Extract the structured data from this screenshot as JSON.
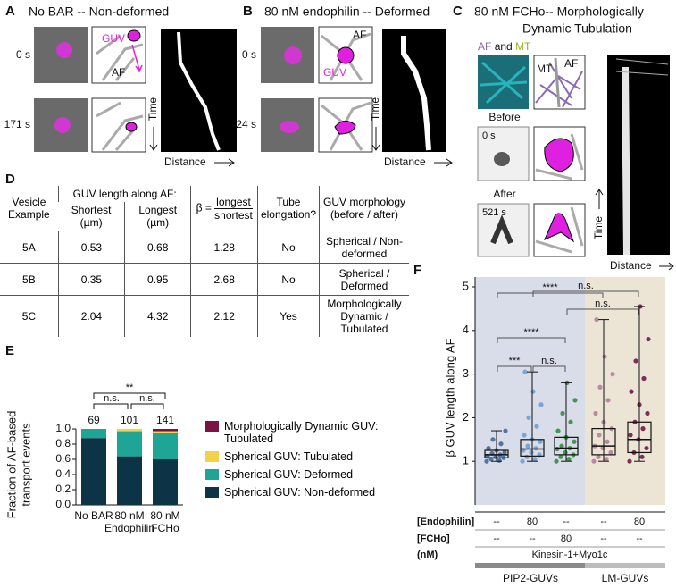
{
  "panels": {
    "A": {
      "label": "A",
      "title": "No BAR -- Non-deformed",
      "times": [
        "0 s",
        "171 s"
      ],
      "guv": "GUV",
      "af": "AF",
      "time_axis": "Time",
      "distance_axis": "Distance"
    },
    "B": {
      "label": "B",
      "title": "80 nM endophilin -- Deformed",
      "times": [
        "0 s",
        "24 s"
      ],
      "af": "AF",
      "guv": "GUV",
      "time_axis": "Time",
      "distance_axis": "Distance"
    },
    "C": {
      "label": "C",
      "title": [
        "80 nM FCHo-- Morphologically",
        "Dynamic Tubulation"
      ],
      "channels": {
        "af": "AF",
        "and": "and",
        "mt": "MT"
      },
      "mt": "MT",
      "af": "AF",
      "before": "Before",
      "after": "After",
      "times": [
        "0 s",
        "521 s"
      ],
      "time_axis": "Time",
      "distance_axis": "Distance"
    },
    "D": {
      "label": "D"
    },
    "E": {
      "label": "E"
    },
    "F": {
      "label": "F"
    }
  },
  "table": {
    "header": {
      "vesicle": "Vesicle Example",
      "length": "GUV length along AF:",
      "shortest": "Shortest (µm)",
      "longest": "Longest (µm)",
      "beta": "β =",
      "numerator": "longest",
      "denominator": "shortest",
      "tube": "Tube elongation?",
      "morphology": "GUV morphology (before / after)"
    },
    "rows": [
      [
        "5A",
        0.53,
        0.68,
        1.28,
        "No",
        "Spherical / Non-deformed"
      ],
      [
        "5B",
        0.35,
        0.95,
        2.68,
        "No",
        "Spherical / Deformed"
      ],
      [
        "5C",
        2.04,
        4.32,
        2.12,
        "Yes",
        "Morphologically Dynamic / Tubulated"
      ]
    ]
  },
  "chart_data": [
    {
      "type": "stacked_bar",
      "ylabel": [
        "Fraction of AF-based",
        "transport events"
      ],
      "categories": [
        [
          "No BAR"
        ],
        [
          "80 nM",
          "Endophilin"
        ],
        [
          "80 nM",
          "FCHo"
        ]
      ],
      "n": [
        69,
        101,
        141
      ],
      "significance": [
        "n.s.",
        "**",
        "n.s."
      ],
      "ylim": [
        0,
        1
      ],
      "yticks": [
        {
          "value": 0,
          "label": "0.0"
        },
        0.2,
        0.4,
        0.6,
        0.8,
        {
          "value": 1,
          "label": "1.0"
        }
      ],
      "series": [
        {
          "name": "Spherical GUV: Non-deformed",
          "color": "#0c3346",
          "values": [
            0.88,
            0.64,
            0.6
          ]
        },
        {
          "name": "Spherical GUV: Deformed",
          "color": "#1fa596",
          "values": [
            0.12,
            0.33,
            0.35
          ]
        },
        {
          "name": "Spherical GUV: Tubulated",
          "color": "#f2d24a",
          "values": [
            0,
            0.03,
            0.02
          ]
        },
        {
          "name": "Morphologically Dynamic GUV: Tubulated",
          "color": "#7b1444",
          "values": [
            0,
            0,
            0.03
          ]
        }
      ]
    },
    {
      "type": "box",
      "ylabel": "β GUV length along AF",
      "ylim": [
        0,
        5
      ],
      "yticks": [
        1,
        2,
        3,
        4,
        5
      ],
      "significance": [
        "****",
        "n.s.",
        "n.s.",
        "****",
        "***",
        "n.s."
      ],
      "boxes": [
        {
          "color": "#3d6290",
          "min": 1.0,
          "q1": 1.08,
          "median": 1.15,
          "q3": 1.25,
          "max": 1.7,
          "points": [
            1.0,
            1.02,
            1.05,
            1.08,
            1.1,
            1.12,
            1.15,
            1.18,
            1.2,
            1.25,
            1.3,
            1.4,
            1.5,
            1.7
          ]
        },
        {
          "color": "#6b9bd2",
          "min": 1.0,
          "q1": 1.12,
          "median": 1.28,
          "q3": 1.5,
          "max": 3.05,
          "points": [
            1.0,
            1.05,
            1.1,
            1.15,
            1.2,
            1.25,
            1.3,
            1.35,
            1.45,
            1.5,
            1.6,
            1.8,
            2.0,
            2.3,
            2.6,
            3.05
          ]
        },
        {
          "color": "#2a8a3a",
          "min": 1.0,
          "q1": 1.15,
          "median": 1.3,
          "q3": 1.55,
          "max": 2.8,
          "points": [
            1.0,
            1.05,
            1.1,
            1.15,
            1.2,
            1.28,
            1.3,
            1.35,
            1.45,
            1.55,
            1.7,
            1.9,
            2.1,
            2.4,
            2.8
          ]
        },
        {
          "color": "#b07a98",
          "min": 1.0,
          "q1": 1.15,
          "median": 1.35,
          "q3": 1.75,
          "max": 4.25,
          "points": [
            1.0,
            1.05,
            1.1,
            1.2,
            1.3,
            1.35,
            1.45,
            1.6,
            1.75,
            1.9,
            2.1,
            2.4,
            2.7,
            3.0,
            3.4,
            4.25
          ]
        },
        {
          "color": "#6a1040",
          "min": 1.0,
          "q1": 1.2,
          "median": 1.5,
          "q3": 1.9,
          "max": 4.55,
          "points": [
            1.0,
            1.1,
            1.2,
            1.3,
            1.5,
            1.6,
            1.75,
            1.9,
            2.1,
            2.3,
            2.6,
            2.9,
            3.3,
            3.8,
            4.55
          ]
        }
      ],
      "conditions": {
        "rows": [
          {
            "label": "[Endophilin]",
            "values": [
              "--",
              "80",
              "--",
              "--",
              "80"
            ]
          },
          {
            "label": "[FCHo]",
            "values": [
              "--",
              "--",
              "80",
              "--",
              "--"
            ]
          }
        ],
        "unit": "(nM)",
        "motors": "Kinesin-1+Myo1c",
        "groups": [
          "PIP2-GUVs",
          "LM-GUVs"
        ]
      }
    }
  ]
}
